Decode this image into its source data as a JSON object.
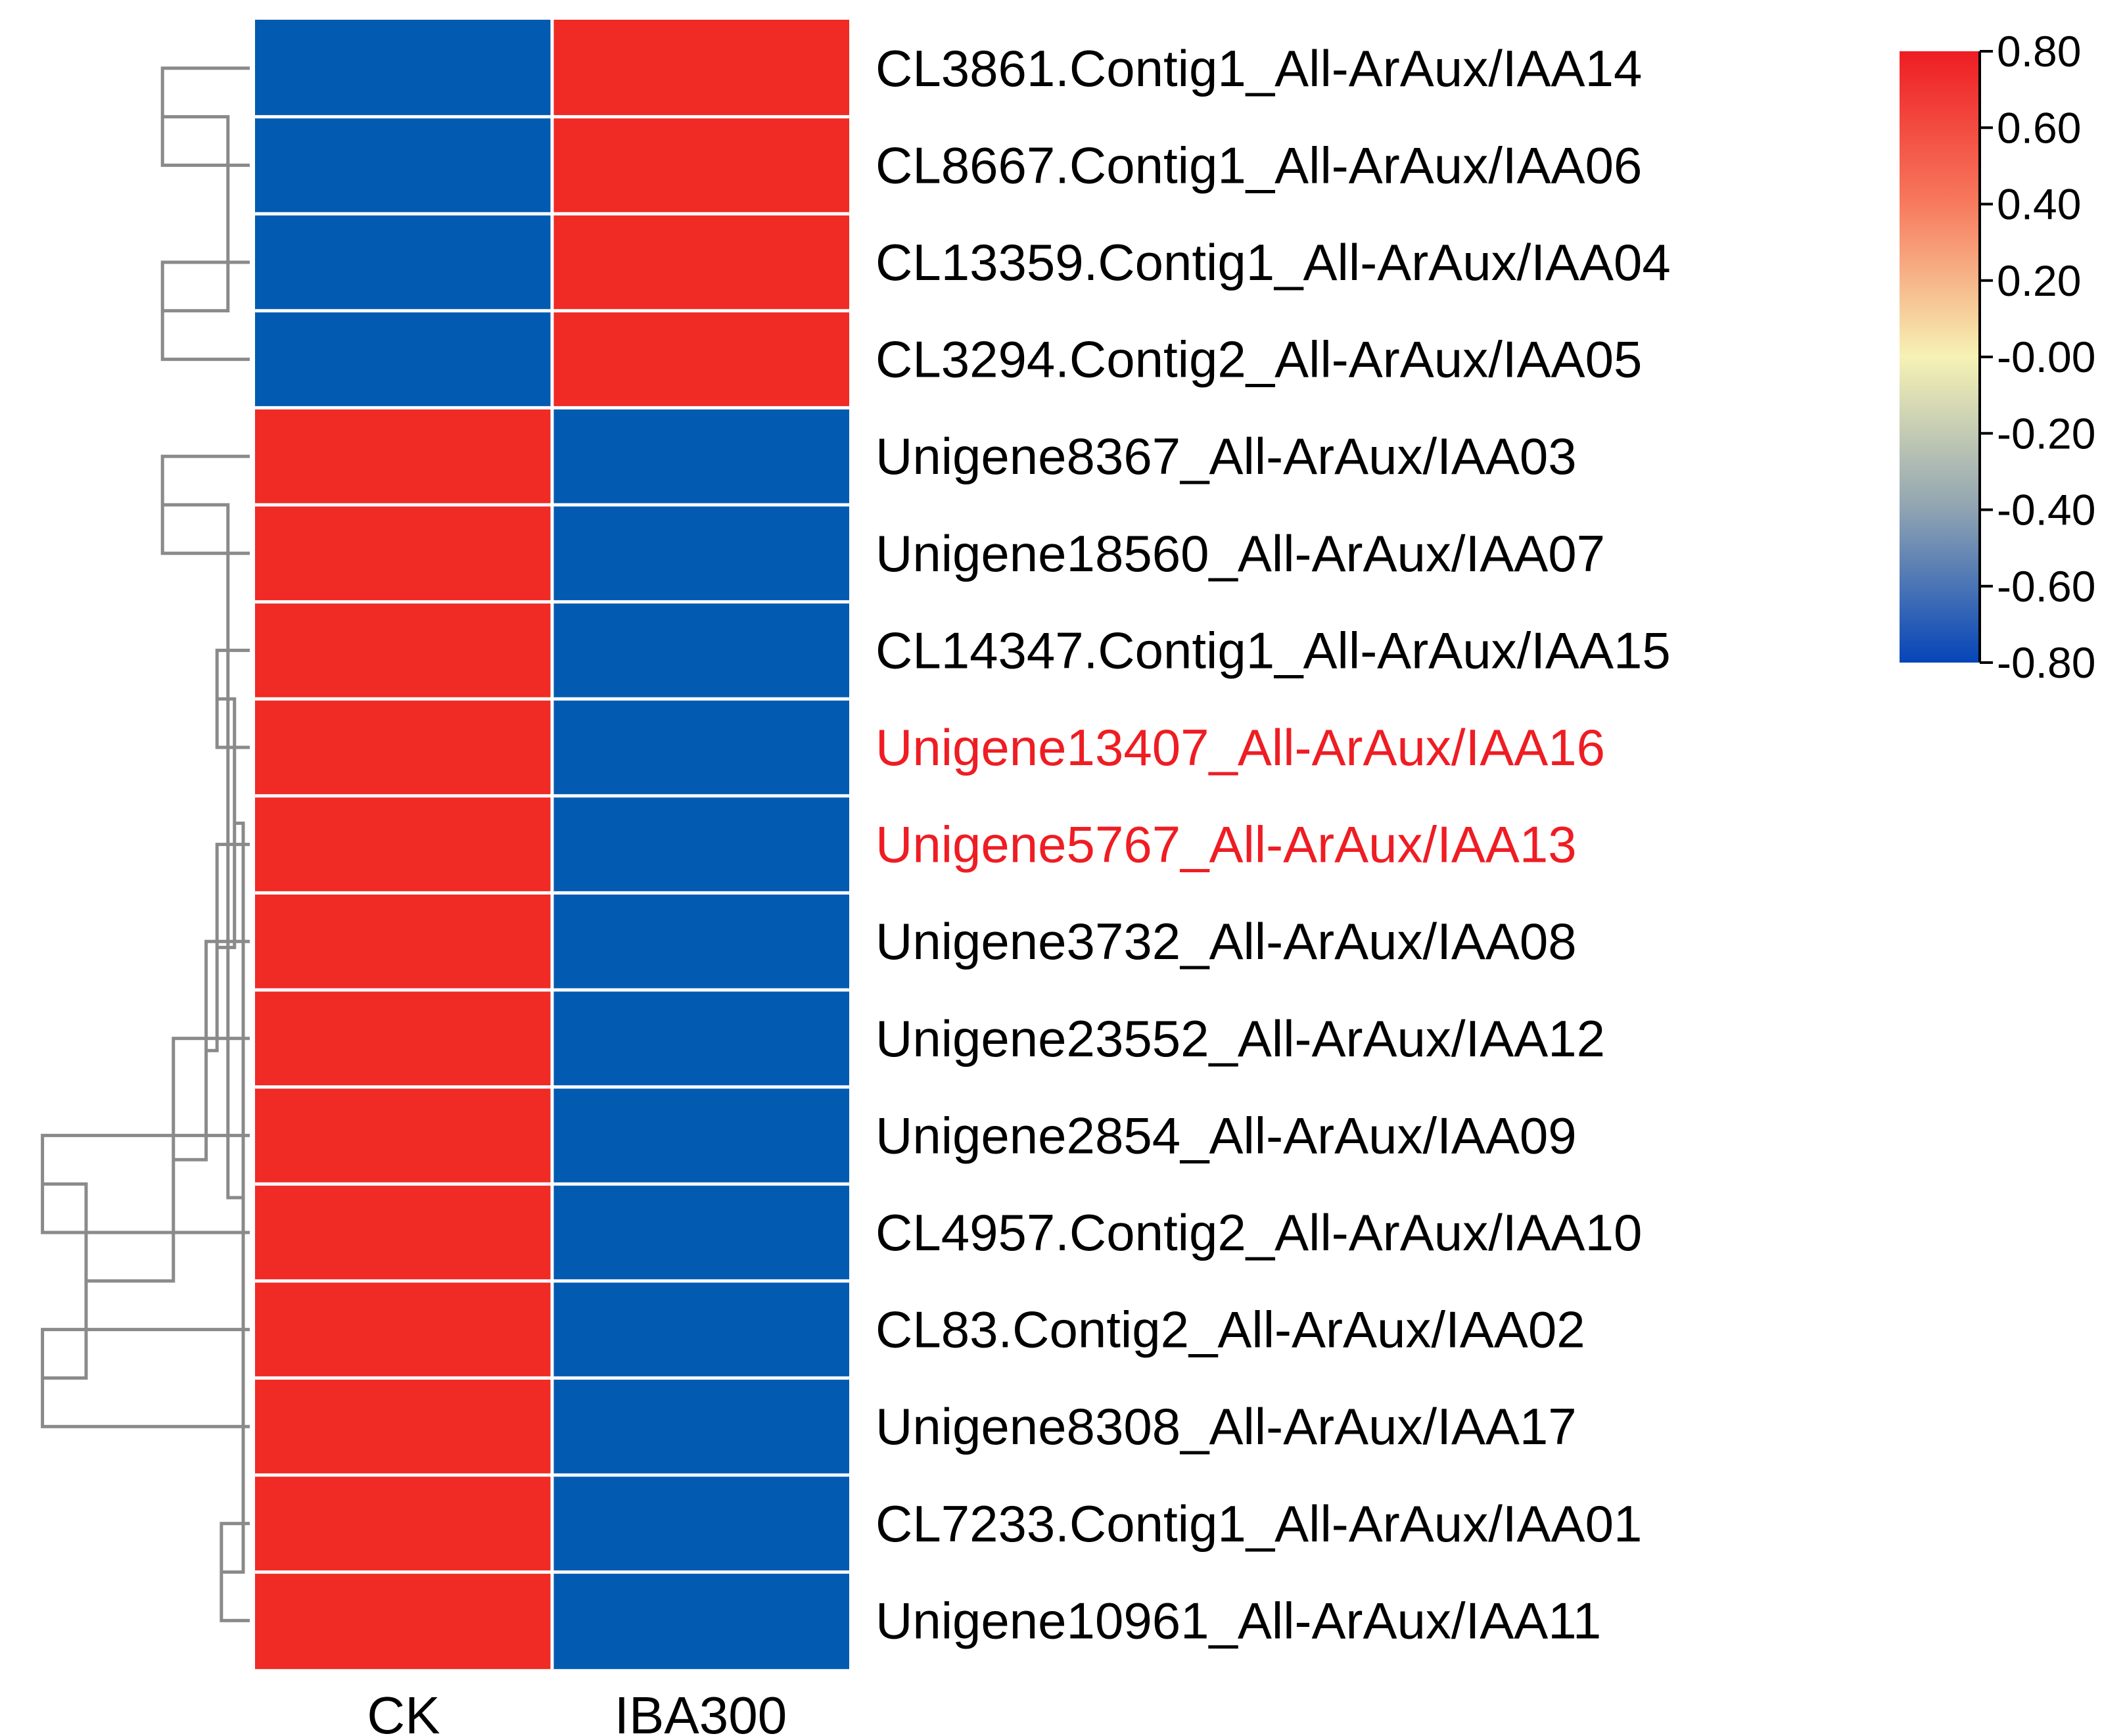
{
  "chart_data": {
    "type": "heatmap",
    "columns": [
      "CK",
      "IBA300"
    ],
    "rows": [
      {
        "label": "CL3861.Contig1_All-ArAux/IAA14",
        "values": [
          -0.71,
          0.71
        ],
        "highlight": false
      },
      {
        "label": "CL8667.Contig1_All-ArAux/IAA06",
        "values": [
          -0.71,
          0.71
        ],
        "highlight": false
      },
      {
        "label": "CL13359.Contig1_All-ArAux/IAA04",
        "values": [
          -0.71,
          0.71
        ],
        "highlight": false
      },
      {
        "label": "CL3294.Contig2_All-ArAux/IAA05",
        "values": [
          -0.71,
          0.71
        ],
        "highlight": false
      },
      {
        "label": "Unigene8367_All-ArAux/IAA03",
        "values": [
          0.71,
          -0.71
        ],
        "highlight": false
      },
      {
        "label": "Unigene18560_All-ArAux/IAA07",
        "values": [
          0.71,
          -0.71
        ],
        "highlight": false
      },
      {
        "label": "CL14347.Contig1_All-ArAux/IAA15",
        "values": [
          0.71,
          -0.71
        ],
        "highlight": false
      },
      {
        "label": "Unigene13407_All-ArAux/IAA16",
        "values": [
          0.71,
          -0.71
        ],
        "highlight": true
      },
      {
        "label": "Unigene5767_All-ArAux/IAA13",
        "values": [
          0.71,
          -0.71
        ],
        "highlight": true
      },
      {
        "label": "Unigene3732_All-ArAux/IAA08",
        "values": [
          0.71,
          -0.71
        ],
        "highlight": false
      },
      {
        "label": "Unigene23552_All-ArAux/IAA12",
        "values": [
          0.71,
          -0.71
        ],
        "highlight": false
      },
      {
        "label": "Unigene2854_All-ArAux/IAA09",
        "values": [
          0.71,
          -0.71
        ],
        "highlight": false
      },
      {
        "label": "CL4957.Contig2_All-ArAux/IAA10",
        "values": [
          0.71,
          -0.71
        ],
        "highlight": false
      },
      {
        "label": "CL83.Contig2_All-ArAux/IAA02",
        "values": [
          0.71,
          -0.71
        ],
        "highlight": false
      },
      {
        "label": "Unigene8308_All-ArAux/IAA17",
        "values": [
          0.71,
          -0.71
        ],
        "highlight": false
      },
      {
        "label": "CL7233.Contig1_All-ArAux/IAA01",
        "values": [
          0.71,
          -0.71
        ],
        "highlight": false
      },
      {
        "label": "Unigene10961_All-ArAux/IAA11",
        "values": [
          0.71,
          -0.71
        ],
        "highlight": false
      }
    ],
    "colorbar": {
      "min": -0.8,
      "max": 0.8,
      "tick_labels": [
        "0.80",
        "0.60",
        "0.40",
        "0.20",
        "-0.00",
        "-0.20",
        "-0.40",
        "-0.60",
        "-0.80"
      ],
      "stops": [
        {
          "value": 0.8,
          "color": "#ee1d23"
        },
        {
          "value": 0.4,
          "color": "#f77a5e"
        },
        {
          "value": 0.0,
          "color": "#f6f2b5"
        },
        {
          "value": -0.4,
          "color": "#8fa3b2"
        },
        {
          "value": -0.8,
          "color": "#0545b8"
        }
      ]
    },
    "dendrogram": {
      "leaf_order": [
        0,
        1,
        2,
        3,
        4,
        5,
        6,
        7,
        8,
        9,
        10,
        11,
        12,
        13,
        14,
        15,
        16
      ],
      "merges": [
        [
          0,
          1,
          0.4
        ],
        [
          2,
          3,
          0.4
        ],
        [
          17,
          18,
          0.1
        ],
        [
          4,
          5,
          0.4
        ],
        [
          11,
          12,
          0.95
        ],
        [
          13,
          14,
          0.95
        ],
        [
          21,
          22,
          0.75
        ],
        [
          10,
          23,
          0.35
        ],
        [
          9,
          24,
          0.2
        ],
        [
          8,
          25,
          0.15
        ],
        [
          6,
          7,
          0.15
        ],
        [
          26,
          27,
          0.07
        ],
        [
          15,
          16,
          0.13
        ],
        [
          28,
          29,
          0.03
        ],
        [
          20,
          30,
          0.1
        ]
      ]
    },
    "colors": {
      "high": "#f02a24",
      "low": "#035bb1",
      "highlight_label": "#ee1d23",
      "label": "#000000",
      "dendrogram_line": "#8a8a8a",
      "cell_separator": "#ffffff"
    },
    "title": "",
    "xlabel": "",
    "ylabel": ""
  }
}
